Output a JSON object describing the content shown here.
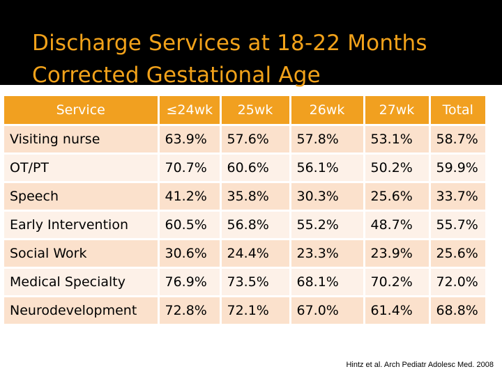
{
  "title": {
    "line1": "Discharge Services at 18-22 Months",
    "line2": "Corrected Gestational Age"
  },
  "colors": {
    "title_band": "#000000",
    "title_text": "#f2a21a",
    "header_bg": "#f1a020",
    "row_odd": "#fbe1cc",
    "row_even": "#fdf1e8"
  },
  "table": {
    "headers": [
      "Service",
      "≤24wk",
      "25wk",
      "26wk",
      "27wk",
      "Total"
    ],
    "rows": [
      [
        "Visiting nurse",
        "63.9%",
        "57.6%",
        "57.8%",
        "53.1%",
        "58.7%"
      ],
      [
        "OT/PT",
        "70.7%",
        "60.6%",
        "56.1%",
        "50.2%",
        "59.9%"
      ],
      [
        "Speech",
        "41.2%",
        "35.8%",
        "30.3%",
        "25.6%",
        "33.7%"
      ],
      [
        "Early Intervention",
        "60.5%",
        "56.8%",
        "55.2%",
        "48.7%",
        "55.7%"
      ],
      [
        "Social Work",
        "30.6%",
        "24.4%",
        "23.3%",
        "23.9%",
        "25.6%"
      ],
      [
        "Medical Specialty",
        "76.9%",
        "73.5%",
        "68.1%",
        "70.2%",
        "72.0%"
      ],
      [
        "Neurodevelopment",
        "72.8%",
        "72.1%",
        "67.0%",
        "61.4%",
        "68.8%"
      ]
    ]
  },
  "citation": "Hintz et al. Arch Pediatr Adolesc Med. 2008"
}
